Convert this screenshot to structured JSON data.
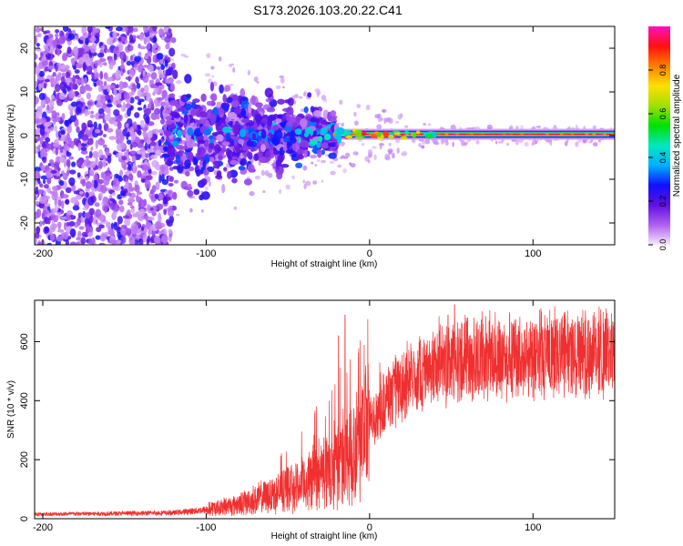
{
  "title": "S173.2026.103.20.22.C41",
  "chart_data": [
    {
      "type": "heatmap",
      "name": "spectrogram",
      "xlabel": "Height of straight line (km)",
      "ylabel": "Frequency (Hz)",
      "xlim": [
        -205,
        150
      ],
      "ylim": [
        -25,
        25
      ],
      "xticks": [
        "-200",
        "-100",
        "0",
        "100"
      ],
      "xtick_values": [
        -200,
        -100,
        0,
        100
      ],
      "yticks": [
        "20",
        "10",
        "0",
        "-10",
        "-20"
      ],
      "ytick_values": [
        20,
        10,
        0,
        -10,
        -20
      ],
      "colorbar": {
        "label": "Normalized spectral amplitude",
        "range": [
          0,
          1
        ],
        "ticks": [
          "0.0",
          "0.2",
          "0.4",
          "0.6",
          "0.8"
        ],
        "tick_values": [
          0.0,
          0.2,
          0.4,
          0.6,
          0.8
        ],
        "colors": [
          "#f6e8ff",
          "#b060f0",
          "#6010e0",
          "#1010ff",
          "#00b0ff",
          "#00e8c0",
          "#00e000",
          "#a0e000",
          "#ffe000",
          "#ff8000",
          "#ff1010",
          "#ff10c0"
        ]
      },
      "features": {
        "carrier_frequency_hz": 0.3,
        "carrier_start_km": -20,
        "description_bands": [
          {
            "x_from": -205,
            "x_to": -125,
            "amp_max": 0.25,
            "spread_hz": 25
          },
          {
            "x_from": -125,
            "x_to": -20,
            "amp_max": 0.3,
            "spread_hz_start": 15,
            "spread_hz_end": 3
          },
          {
            "x_from": -20,
            "x_to": 150,
            "amp_max": 1.0,
            "spread_hz": 1
          }
        ]
      }
    },
    {
      "type": "line",
      "name": "snr",
      "xlabel": "Height of straight line (km)",
      "ylabel": "SNR (10 * v/v)",
      "xlim": [
        -205,
        150
      ],
      "ylim": [
        0,
        740
      ],
      "xticks": [
        "-200",
        "-100",
        "0",
        "100"
      ],
      "xtick_values": [
        -200,
        -100,
        0,
        100
      ],
      "yticks": [
        "0",
        "200",
        "400",
        "600"
      ],
      "ytick_values": [
        0,
        200,
        400,
        600
      ],
      "color": "#f03030",
      "trend_km": [
        -205,
        -150,
        -120,
        -100,
        -80,
        -60,
        -40,
        -20,
        -10,
        0,
        10,
        20,
        30,
        40,
        60,
        80,
        100,
        120,
        150
      ],
      "trend_snr": [
        15,
        18,
        20,
        30,
        50,
        80,
        120,
        180,
        240,
        320,
        400,
        450,
        490,
        520,
        540,
        545,
        550,
        555,
        560
      ],
      "spikes": [
        {
          "x": -15,
          "y": 690
        },
        {
          "x": -19,
          "y": 620
        },
        {
          "x": 52,
          "y": 725
        },
        {
          "x": 48,
          "y": 690
        },
        {
          "x": 60,
          "y": 680
        }
      ]
    }
  ]
}
